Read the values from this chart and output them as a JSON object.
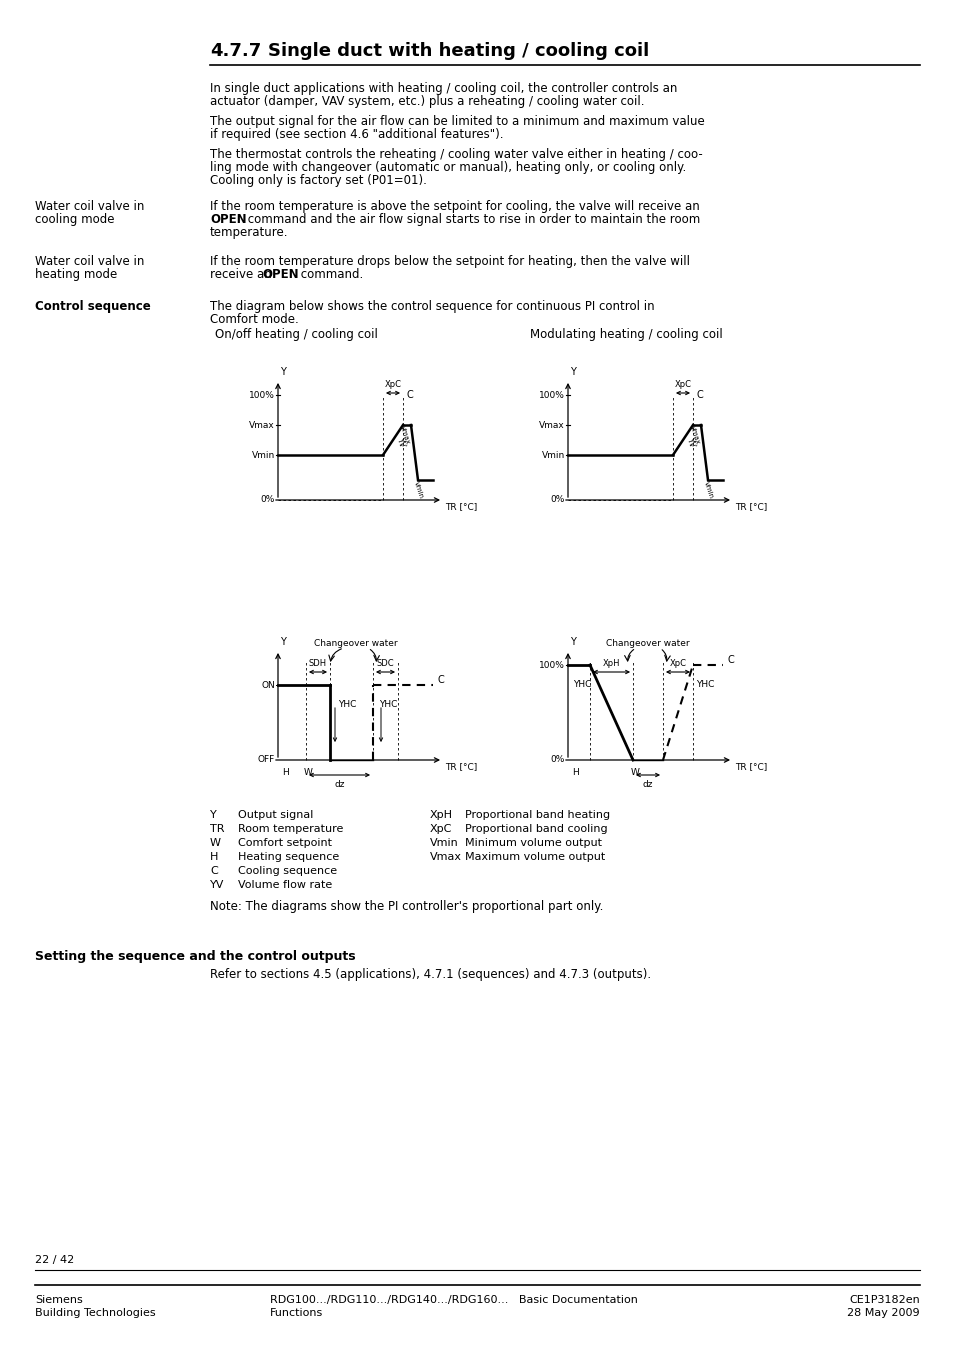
{
  "bg_color": "#ffffff",
  "title_num": "4.7.7",
  "title_text": "Single duct with heating / cooling coil",
  "para1_l1": "In single duct applications with heating / cooling coil, the controller controls an",
  "para1_l2": "actuator (damper, VAV system, etc.) plus a reheating / cooling water coil.",
  "para2_l1": "The output signal for the air flow can be limited to a minimum and maximum value",
  "para2_l2": "if required (see section 4.6 \"additional features\").",
  "para3_l1": "The thermostat controls the reheating / cooling water valve either in heating / coo-",
  "para3_l2": "ling mode with changeover (automatic or manual), heating only, or cooling only.",
  "para3_l3": "Cooling only is factory set (P01=01).",
  "wc_cool_l1": "Water coil valve in",
  "wc_cool_l2": "cooling mode",
  "wc_cool_text1": "If the room temperature is above the setpoint for cooling, the valve will receive an",
  "wc_cool_text2b": "OPEN",
  "wc_cool_text2a": " command and the air flow signal starts to rise in order to maintain the room",
  "wc_cool_text3": "temperature.",
  "wc_heat_l1": "Water coil valve in",
  "wc_heat_l2": "heating mode",
  "wc_heat_text1": "If the room temperature drops below the setpoint for heating, then the valve will",
  "wc_heat_text2a": "receive an ",
  "wc_heat_text2b": "OPEN",
  "wc_heat_text2c": " command.",
  "ctrl_seq_label": "Control sequence",
  "ctrl_seq_text1": "The diagram below shows the control sequence for continuous PI control in",
  "ctrl_seq_text2": "Comfort mode.",
  "diag_title_left": "On/off heating / cooling coil",
  "diag_title_right": "Modulating heating / cooling coil",
  "legend_left": [
    [
      "Y",
      "Output signal"
    ],
    [
      "TR",
      "Room temperature"
    ],
    [
      "W",
      "Comfort setpoint"
    ],
    [
      "H",
      "Heating sequence"
    ],
    [
      "C",
      "Cooling sequence"
    ],
    [
      "YV",
      "Volume flow rate"
    ]
  ],
  "legend_right": [
    [
      "XpH",
      "Proportional band heating"
    ],
    [
      "XpC",
      "Proportional band cooling"
    ],
    [
      "Vmin",
      "Minimum volume output"
    ],
    [
      "Vmax",
      "Maximum volume output"
    ]
  ],
  "note": "Note: The diagrams show the PI controller's proportional part only.",
  "setting_bold": "Setting the sequence and the control outputs",
  "setting_text": "Refer to sections 4.5 (applications), 4.7.1 (sequences) and 4.7.3 (outputs).",
  "footer_page": "22 / 42",
  "footer_l1": "Siemens",
  "footer_l2": "Building Technologies",
  "footer_c1": "RDG100.../RDG110.../RDG140.../RDG160...   Basic Documentation",
  "footer_c2": "Functions",
  "footer_r1": "CE1P3182en",
  "footer_r2": "28 May 2009"
}
